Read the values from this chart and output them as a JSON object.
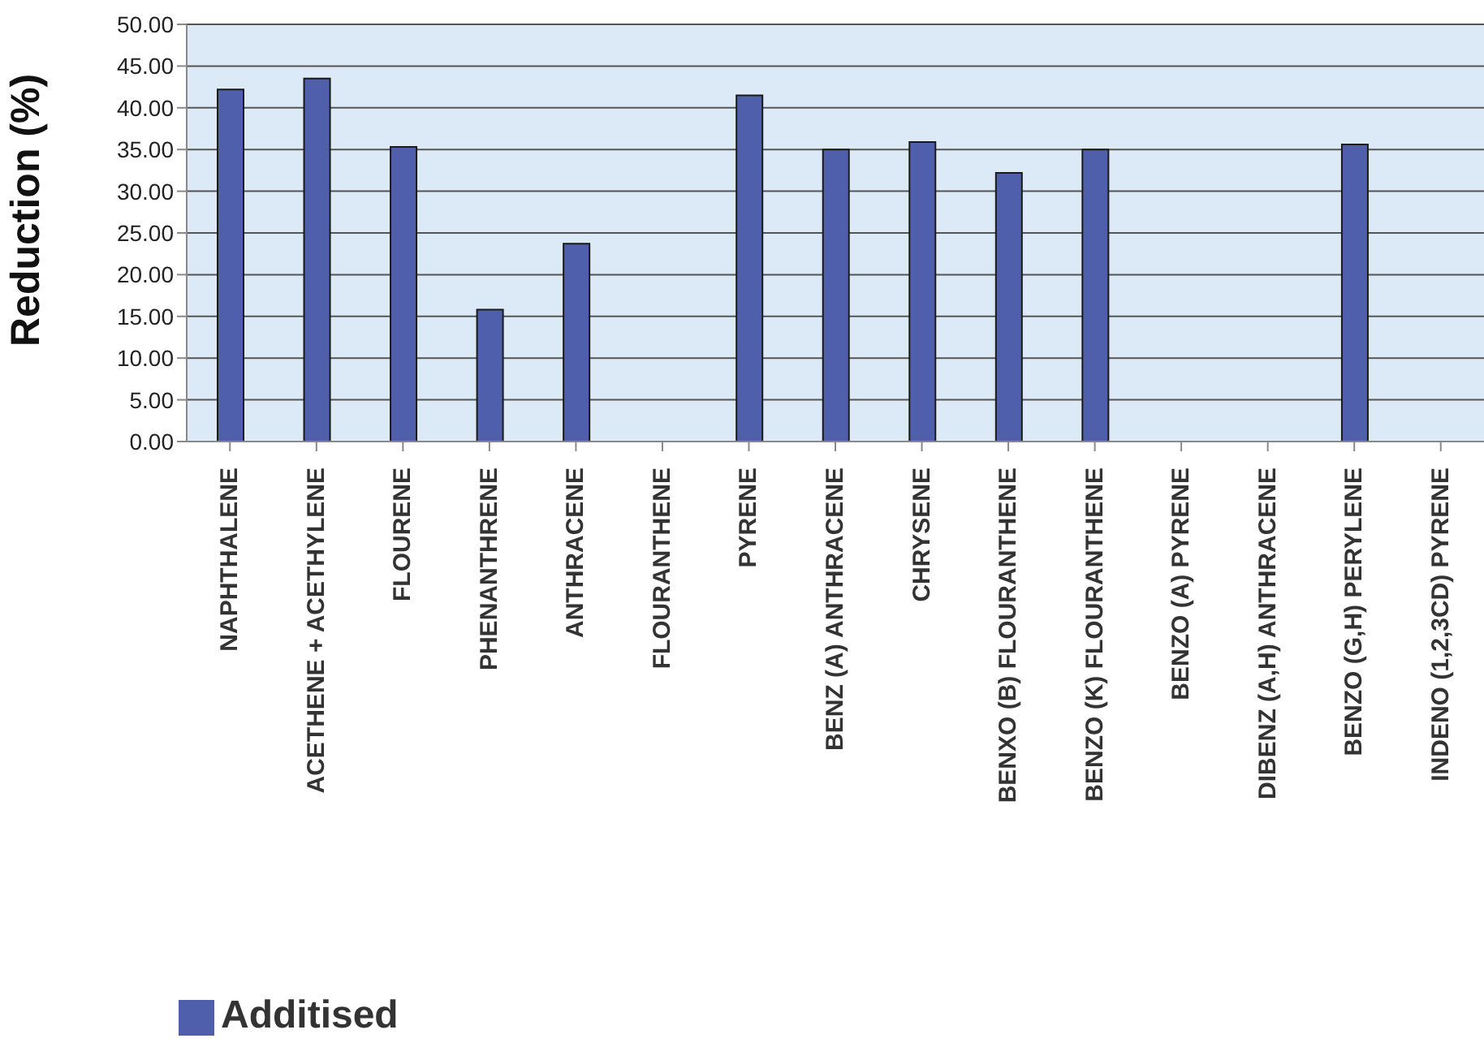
{
  "chart_data": {
    "type": "bar",
    "ylabel": "Reduction (%)",
    "categories": [
      "NAPHTHALENE",
      "ACETHENE + ACETHYLENE",
      "FLOURENE",
      "PHENANTHRENE",
      "ANTHRACENE",
      "FLOURANTHENE",
      "PYRENE",
      "BENZ (A) ANTHRACENE",
      "CHRYSENE",
      "BENXO (B) FLOURANTHENE",
      "BENZO (K) FLOURANTHENE",
      "BENZO (A) PYRENE",
      "DIBENZ (A,H) ANTHRACENE",
      "BENZO (G,H) PERYLENE",
      "INDENO (1,2,3CD) PYRENE"
    ],
    "series": [
      {
        "name": "Additised",
        "color": "#4f5fab",
        "values": [
          42.2,
          43.5,
          35.3,
          15.8,
          23.7,
          null,
          41.5,
          35.0,
          35.9,
          32.2,
          35.0,
          null,
          null,
          35.6,
          null
        ]
      }
    ],
    "ylim": [
      0,
      50
    ],
    "yticks": [
      {
        "value": 0,
        "label": "0.00"
      },
      {
        "value": 5,
        "label": "5.00"
      },
      {
        "value": 10,
        "label": "10.00"
      },
      {
        "value": 15,
        "label": "15.00"
      },
      {
        "value": 20,
        "label": "20.00"
      },
      {
        "value": 25,
        "label": "25.00"
      },
      {
        "value": 30,
        "label": "30.00"
      },
      {
        "value": 35,
        "label": "35.00"
      },
      {
        "value": 40,
        "label": "40.00"
      },
      {
        "value": 45,
        "label": "45.00"
      },
      {
        "value": 50,
        "label": "50.00"
      }
    ],
    "grid": "y",
    "legend": "bottom left"
  }
}
